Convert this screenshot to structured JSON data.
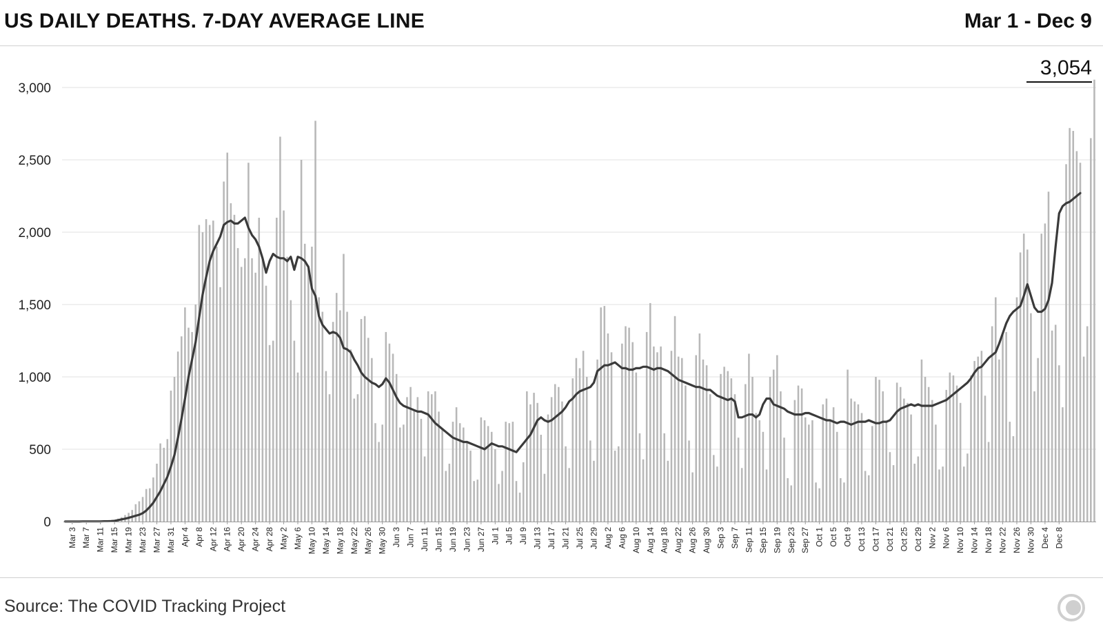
{
  "header": {
    "title": "US DAILY DEATHS. 7-DAY AVERAGE LINE",
    "date_range": "Mar 1 - Dec 9"
  },
  "footer": {
    "source": "Source: The COVID Tracking Project",
    "logo_icon": "covid-tracking-logo-icon"
  },
  "colors": {
    "bar": "#b8b8b8",
    "line": "#3a3a3a",
    "grid": "#e2e2e2",
    "text": "#111111"
  },
  "chart_data": {
    "type": "bar",
    "title": "US DAILY DEATHS. 7-DAY AVERAGE LINE",
    "xlabel": "",
    "ylabel": "",
    "ylim": [
      0,
      3000
    ],
    "yticks": [
      0,
      500,
      1000,
      1500,
      2000,
      2500,
      3000
    ],
    "ytick_labels": [
      "0",
      "500",
      "1,000",
      "1,500",
      "2,000",
      "2,500",
      "3,000"
    ],
    "x_start": "Mar 1",
    "x_end": "Dec 9",
    "xtick_labels": [
      "Mar 3",
      "Mar 7",
      "Mar 11",
      "Mar 15",
      "Mar 19",
      "Mar 23",
      "Mar 27",
      "Mar 31",
      "Apr 4",
      "Apr 8",
      "Apr 12",
      "Apr 16",
      "Apr 20",
      "Apr 24",
      "Apr 28",
      "May 2",
      "May 6",
      "May 10",
      "May 14",
      "May 18",
      "May 22",
      "May 26",
      "May 30",
      "Jun 3",
      "Jun 7",
      "Jun 11",
      "Jun 15",
      "Jun 19",
      "Jun 23",
      "Jun 27",
      "Jul 1",
      "Jul 5",
      "Jul 9",
      "Jul 13",
      "Jul 17",
      "Jul 21",
      "Jul 25",
      "Jul 29",
      "Aug 2",
      "Aug 6",
      "Aug 10",
      "Aug 14",
      "Aug 18",
      "Aug 22",
      "Aug 26",
      "Aug 30",
      "Sep 3",
      "Sep 7",
      "Sep 11",
      "Sep 15",
      "Sep 19",
      "Sep 23",
      "Sep 27",
      "Oct 1",
      "Oct 5",
      "Oct 9",
      "Oct 13",
      "Oct 17",
      "Oct 21",
      "Oct 25",
      "Oct 29",
      "Nov 2",
      "Nov 6",
      "Nov 10",
      "Nov 14",
      "Nov 18",
      "Nov 22",
      "Nov 26",
      "Nov 30",
      "Dec 4",
      "Dec 8"
    ],
    "annotation": {
      "label": "3,054",
      "value": 3054,
      "date": "Dec 9"
    },
    "series": [
      {
        "name": "Daily deaths",
        "kind": "bar",
        "values": [
          0,
          1,
          0,
          1,
          0,
          2,
          1,
          1,
          1,
          1,
          4,
          3,
          3,
          5,
          10,
          20,
          30,
          45,
          60,
          80,
          120,
          140,
          170,
          225,
          230,
          305,
          400,
          540,
          510,
          570,
          905,
          1000,
          1175,
          1280,
          1480,
          1340,
          1310,
          1500,
          2050,
          2000,
          2090,
          2050,
          2080,
          1900,
          1620,
          2350,
          2550,
          2200,
          2120,
          1890,
          1760,
          1820,
          2480,
          1820,
          1720,
          2100,
          1810,
          1630,
          1220,
          1250,
          2100,
          2660,
          2150,
          1830,
          1530,
          1250,
          1030,
          2500,
          1920,
          1770,
          1900,
          2770,
          1550,
          1450,
          1040,
          880,
          1380,
          1580,
          1460,
          1850,
          1450,
          1190,
          850,
          880,
          1400,
          1420,
          1270,
          1130,
          680,
          550,
          670,
          1310,
          1230,
          1160,
          1020,
          650,
          670,
          860,
          930,
          770,
          860,
          710,
          450,
          900,
          880,
          900,
          760,
          640,
          350,
          400,
          690,
          790,
          680,
          650,
          550,
          490,
          280,
          290,
          720,
          700,
          660,
          620,
          500,
          260,
          350,
          690,
          680,
          690,
          280,
          200,
          410,
          900,
          810,
          890,
          820,
          600,
          330,
          740,
          860,
          950,
          930,
          830,
          520,
          370,
          990,
          1130,
          1060,
          1180,
          1000,
          560,
          420,
          1120,
          1480,
          1490,
          1300,
          1170,
          490,
          520,
          1230,
          1350,
          1340,
          1240,
          1030,
          610,
          430,
          1310,
          1510,
          1210,
          1170,
          1210,
          610,
          420,
          1180,
          1420,
          1140,
          1130,
          940,
          560,
          340,
          1150,
          1300,
          1120,
          1080,
          880,
          460,
          380,
          1020,
          1070,
          1040,
          990,
          880,
          580,
          370,
          950,
          1160,
          1000,
          750,
          700,
          620,
          360,
          1000,
          1050,
          1150,
          900,
          580,
          300,
          250,
          840,
          940,
          920,
          720,
          670,
          700,
          270,
          230,
          810,
          850,
          700,
          790,
          620,
          300,
          270,
          1050,
          850,
          830,
          810,
          750,
          350,
          320,
          660,
          1000,
          980,
          900,
          690,
          480,
          390,
          960,
          930,
          850,
          820,
          740,
          400,
          450,
          1120,
          1000,
          930,
          840,
          670,
          360,
          380,
          910,
          1030,
          1010,
          940,
          820,
          380,
          470,
          1010,
          1110,
          1140,
          1180,
          870,
          550,
          1350,
          1550,
          1120,
          1290,
          1310,
          690,
          590,
          1550,
          1860,
          1990,
          1880,
          1440,
          900,
          1130,
          1990,
          2060,
          2280,
          1320,
          1360,
          1080,
          790,
          2470,
          2720,
          2700,
          2560,
          2480,
          1140,
          1350,
          2650,
          3054
        ]
      },
      {
        "name": "7-day average",
        "kind": "line",
        "values": [
          0,
          0,
          0,
          0,
          0,
          1,
          1,
          1,
          1,
          1,
          1,
          2,
          2,
          3,
          5,
          10,
          15,
          20,
          26,
          33,
          40,
          47,
          58,
          76,
          101,
          130,
          170,
          210,
          260,
          310,
          380,
          460,
          580,
          710,
          850,
          1000,
          1120,
          1240,
          1410,
          1570,
          1690,
          1800,
          1870,
          1920,
          1970,
          2050,
          2070,
          2080,
          2060,
          2060,
          2080,
          2100,
          2030,
          1980,
          1950,
          1900,
          1820,
          1720,
          1800,
          1850,
          1830,
          1820,
          1820,
          1800,
          1830,
          1740,
          1830,
          1820,
          1800,
          1760,
          1610,
          1560,
          1420,
          1360,
          1330,
          1300,
          1310,
          1300,
          1270,
          1200,
          1190,
          1170,
          1120,
          1080,
          1030,
          1000,
          980,
          960,
          950,
          930,
          950,
          990,
          960,
          910,
          860,
          820,
          800,
          790,
          780,
          770,
          760,
          760,
          750,
          740,
          710,
          680,
          660,
          640,
          620,
          600,
          580,
          570,
          560,
          550,
          550,
          540,
          530,
          520,
          510,
          500,
          520,
          540,
          530,
          520,
          520,
          510,
          500,
          490,
          480,
          510,
          540,
          570,
          600,
          650,
          700,
          720,
          700,
          690,
          700,
          720,
          740,
          760,
          790,
          830,
          850,
          880,
          900,
          910,
          920,
          930,
          960,
          1040,
          1060,
          1080,
          1080,
          1090,
          1100,
          1080,
          1060,
          1060,
          1050,
          1050,
          1060,
          1060,
          1070,
          1070,
          1060,
          1050,
          1060,
          1060,
          1050,
          1040,
          1020,
          1000,
          980,
          970,
          960,
          950,
          940,
          930,
          930,
          920,
          910,
          910,
          890,
          870,
          860,
          850,
          840,
          850,
          830,
          720,
          720,
          730,
          740,
          740,
          720,
          740,
          810,
          850,
          850,
          810,
          800,
          790,
          780,
          760,
          750,
          740,
          740,
          740,
          750,
          750,
          740,
          730,
          720,
          710,
          700,
          700,
          690,
          680,
          690,
          690,
          680,
          670,
          680,
          690,
          690,
          690,
          700,
          690,
          680,
          680,
          690,
          690,
          700,
          730,
          760,
          780,
          790,
          800,
          810,
          800,
          810,
          800,
          800,
          800,
          800,
          810,
          820,
          830,
          840,
          860,
          880,
          900,
          920,
          940,
          960,
          990,
          1030,
          1060,
          1070,
          1100,
          1130,
          1150,
          1170,
          1230,
          1300,
          1370,
          1420,
          1450,
          1470,
          1490,
          1560,
          1640,
          1560,
          1480,
          1450,
          1450,
          1470,
          1530,
          1650,
          1900,
          2130,
          2180,
          2200,
          2210,
          2230,
          2250,
          2270
        ]
      }
    ]
  }
}
